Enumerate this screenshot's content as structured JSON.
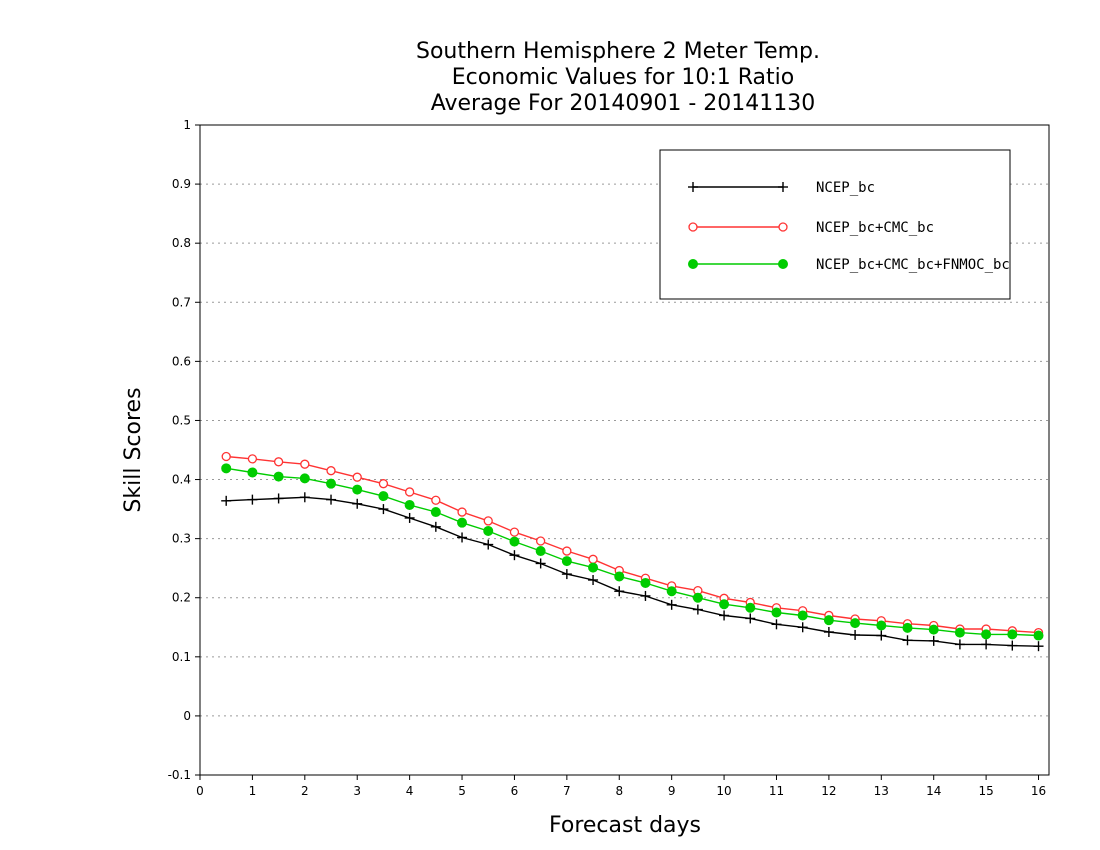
{
  "chart_data": {
    "type": "line",
    "title": [
      "Southern Hemisphere 2 Meter Temp.",
      "Economic Values for 10:1 Ratio",
      "Average For 20140901 - 20141130"
    ],
    "xlabel": "Forecast days",
    "ylabel": "Skill Scores",
    "xlim": [
      0,
      16.2
    ],
    "ylim": [
      -0.1,
      1
    ],
    "xticks": [
      0,
      1,
      2,
      3,
      4,
      5,
      6,
      7,
      8,
      9,
      10,
      11,
      12,
      13,
      14,
      15,
      16
    ],
    "yticks": [
      -0.1,
      0,
      0.1,
      0.2,
      0.3,
      0.4,
      0.5,
      0.6,
      0.7,
      0.8,
      0.9,
      1
    ],
    "ytick_labels": [
      "-0.1",
      "0",
      "0.1",
      "0.2",
      "0.3",
      "0.4",
      "0.5",
      "0.6",
      "0.7",
      "0.8",
      "0.9",
      "1"
    ],
    "grid": "dotted horizontal",
    "legend_position": "top-right",
    "x": [
      0.5,
      1,
      1.5,
      2,
      2.5,
      3,
      3.5,
      4,
      4.5,
      5,
      5.5,
      6,
      6.5,
      7,
      7.5,
      8,
      8.5,
      9,
      9.5,
      10,
      10.5,
      11,
      11.5,
      12,
      12.5,
      13,
      13.5,
      14,
      14.5,
      15,
      15.5,
      16
    ],
    "series": [
      {
        "name": "NCEP_bc",
        "color": "#000000",
        "marker": "plus",
        "values": [
          0.364,
          0.366,
          0.368,
          0.37,
          0.366,
          0.359,
          0.35,
          0.335,
          0.32,
          0.302,
          0.29,
          0.272,
          0.258,
          0.24,
          0.23,
          0.211,
          0.203,
          0.188,
          0.18,
          0.17,
          0.165,
          0.155,
          0.15,
          0.142,
          0.137,
          0.136,
          0.128,
          0.127,
          0.121,
          0.121,
          0.119,
          0.118
        ]
      },
      {
        "name": "NCEP_bc+CMC_bc",
        "color": "#ff3333",
        "marker": "open-circle",
        "values": [
          0.439,
          0.435,
          0.43,
          0.426,
          0.415,
          0.404,
          0.393,
          0.379,
          0.365,
          0.345,
          0.33,
          0.311,
          0.296,
          0.279,
          0.265,
          0.246,
          0.233,
          0.22,
          0.212,
          0.199,
          0.192,
          0.183,
          0.178,
          0.17,
          0.164,
          0.161,
          0.156,
          0.153,
          0.147,
          0.147,
          0.144,
          0.141
        ]
      },
      {
        "name": "NCEP_bc+CMC_bc+FNMOC_bc",
        "color": "#00cc00",
        "marker": "filled-circle",
        "values": [
          0.419,
          0.412,
          0.405,
          0.402,
          0.393,
          0.383,
          0.372,
          0.357,
          0.345,
          0.327,
          0.313,
          0.295,
          0.279,
          0.262,
          0.251,
          0.236,
          0.225,
          0.211,
          0.2,
          0.189,
          0.183,
          0.175,
          0.17,
          0.162,
          0.157,
          0.153,
          0.149,
          0.146,
          0.141,
          0.138,
          0.138,
          0.136
        ]
      }
    ]
  }
}
